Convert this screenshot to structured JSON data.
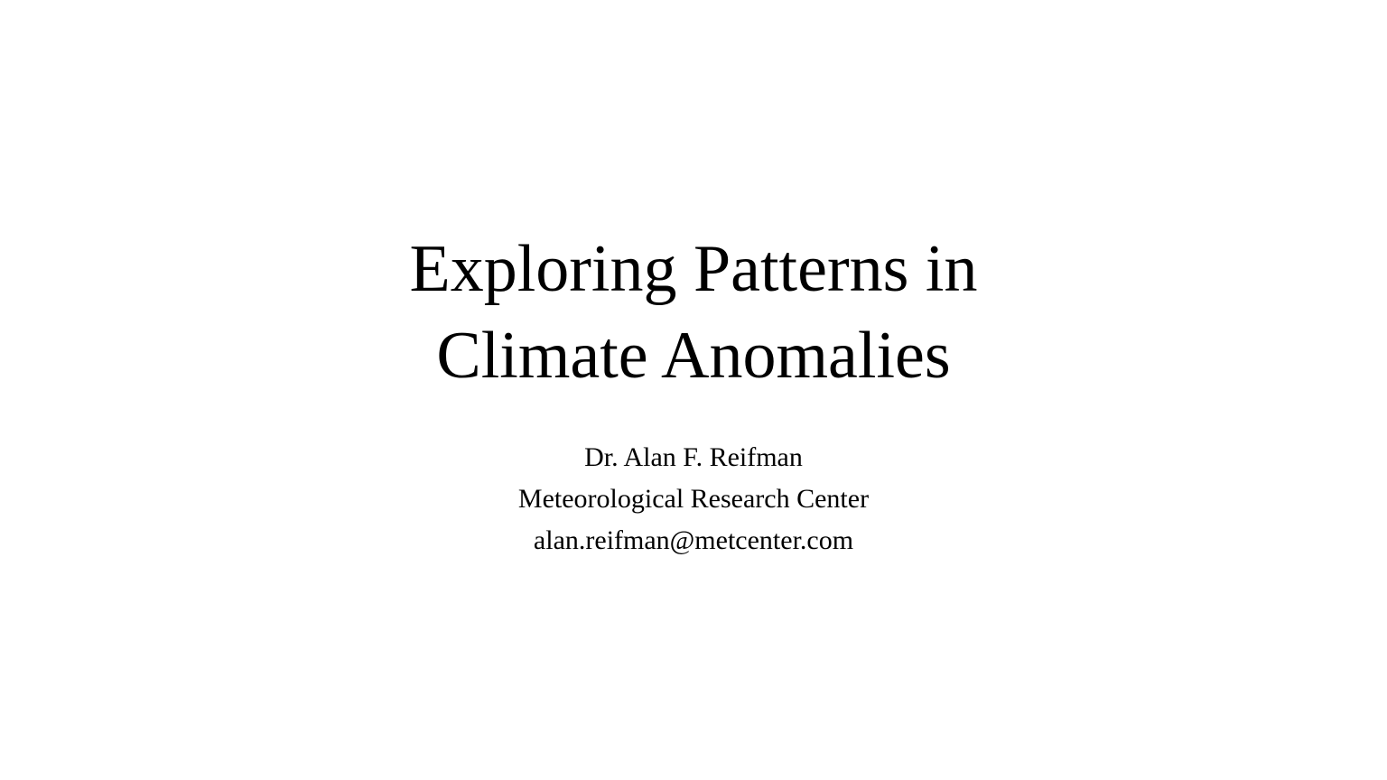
{
  "slide": {
    "title_lines": [
      "Exploring Patterns in",
      "Climate Anomalies"
    ],
    "author": "Dr. Alan F. Reifman",
    "affiliation": "Meteorological Research Center",
    "email": "alan.reifman@metcenter.com"
  },
  "colors": {
    "background": "#ffffff",
    "text": "#000000"
  }
}
